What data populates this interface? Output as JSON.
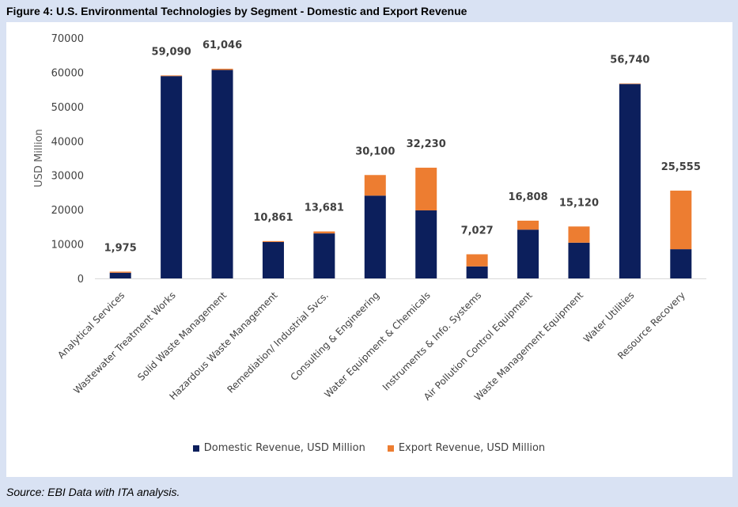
{
  "title": "Figure 4: U.S. Environmental Technologies by Segment - Domestic and Export Revenue",
  "source": "Source: EBI Data with ITA analysis.",
  "colors": {
    "domestic": "#0c1f5c",
    "export": "#ed7d31",
    "background": "#d9e2f3"
  },
  "chart_data": {
    "type": "bar",
    "stacked": true,
    "title": "Figure 4: U.S. Environmental Technologies by Segment - Domestic and Export Revenue",
    "xlabel": "",
    "ylabel": "USD Million",
    "ylim": [
      0,
      70000
    ],
    "yticks": [
      0,
      10000,
      20000,
      30000,
      40000,
      50000,
      60000,
      70000
    ],
    "grid": false,
    "legend_position": "bottom",
    "categories": [
      "Analytical Services",
      "Wastewater Treatment Works",
      "Solid Waste Management",
      "Hazardous Waste Management",
      "Remediation/ Industrial Svcs.",
      "Consulting & Engineering",
      "Water Equipment & Chemicals",
      "Instruments & Info. Systems",
      "Air Pollution Control Equipment",
      "Waste Management Equipment",
      "Water Utilities",
      "Resource Recovery"
    ],
    "series": [
      {
        "name": "Domestic Revenue, USD Million",
        "values": [
          1650,
          58900,
          60700,
          10600,
          13100,
          24100,
          19800,
          3500,
          14200,
          10400,
          56600,
          8500
        ]
      },
      {
        "name": "Export Revenue, USD Million",
        "values": [
          325,
          190,
          346,
          261,
          581,
          6000,
          12430,
          3527,
          2608,
          4720,
          140,
          17055
        ]
      }
    ],
    "totals": [
      1975,
      59090,
      61046,
      10861,
      13681,
      30100,
      32230,
      7027,
      16808,
      15120,
      56740,
      25555
    ],
    "total_labels": [
      "1,975",
      "59,090",
      "61,046",
      "10,861",
      "13,681",
      "30,100",
      "32,230",
      "7,027",
      "16,808",
      "15,120",
      "56,740",
      "25,555"
    ]
  }
}
